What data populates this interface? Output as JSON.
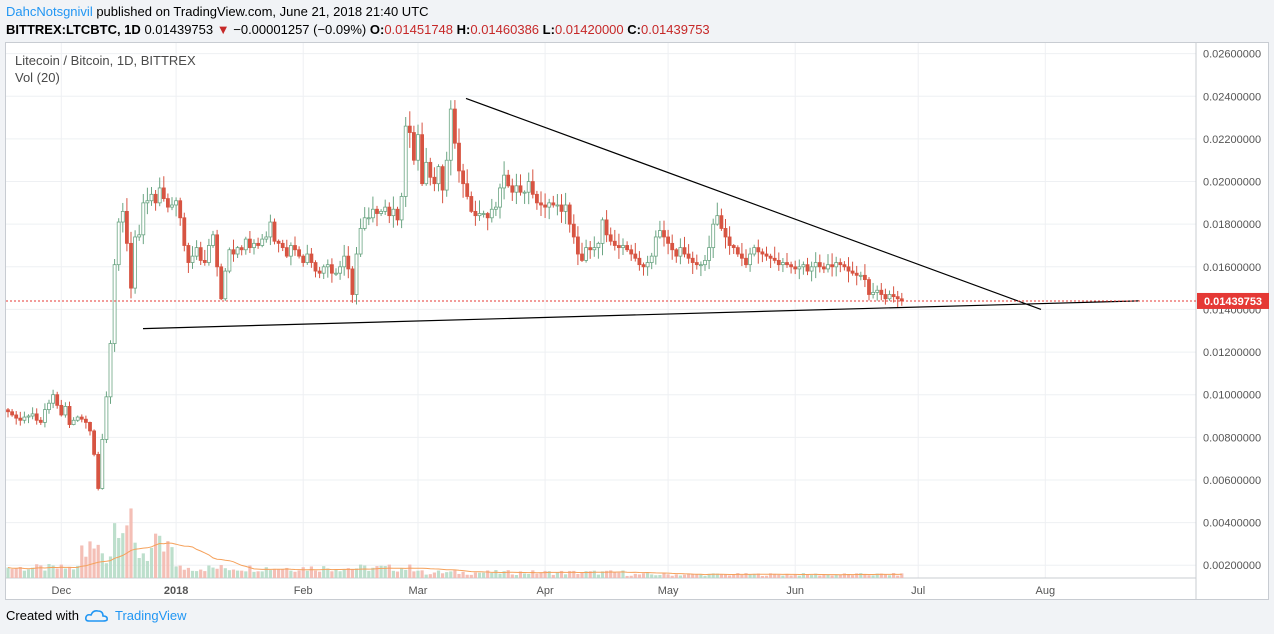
{
  "header": {
    "author": "DahcNotsgnivil",
    "published_text": "published on TradingView.com, June 21, 2018 21:40 UTC",
    "symbol": "BITTREX:LTCBTC, 1D",
    "last": "0.01439753",
    "arrow": "▼",
    "change": "−0.00001257 (−0.09%)",
    "o_label": "O:",
    "o_value": "0.01451748",
    "h_label": "H:",
    "h_value": "0.01460386",
    "l_label": "L:",
    "l_value": "0.01420000",
    "c_label": "C:",
    "c_value": "0.01439753"
  },
  "legend": {
    "title": "Litecoin / Bitcoin, 1D, BITTREX",
    "volume": "Vol (20)"
  },
  "footer": {
    "created_with": "Created with",
    "brand": "TradingView"
  },
  "colors": {
    "up": "#6ba583",
    "down": "#d75442",
    "upFill": "#ffffff",
    "last_price_tag": "#e53935",
    "vol_ma": "#f5a15b"
  },
  "chart_data": {
    "type": "candlestick",
    "y_axis_ticks": [
      "0.02600000",
      "0.02400000",
      "0.02200000",
      "0.02000000",
      "0.01800000",
      "0.01600000",
      "0.01400000",
      "0.01200000",
      "0.01000000",
      "0.00800000",
      "0.00600000",
      "0.00400000",
      "0.00200000"
    ],
    "ylim": [
      0.0014,
      0.0265
    ],
    "x_axis_labels": [
      "Dec",
      "2018",
      "Feb",
      "Mar",
      "Apr",
      "May",
      "Jun",
      "Jul",
      "Aug"
    ],
    "last_price_label": "0.01439753",
    "last_price": 0.01439753,
    "closes": [
      0.0092,
      0.00905,
      0.0089,
      0.0088,
      0.00895,
      0.009,
      0.0091,
      0.0088,
      0.0087,
      0.0093,
      0.0096,
      0.01,
      0.0095,
      0.00905,
      0.00945,
      0.0086,
      0.0088,
      0.00895,
      0.00885,
      0.0087,
      0.0083,
      0.0072,
      0.0056,
      0.0079,
      0.0099,
      0.0124,
      0.0161,
      0.0181,
      0.0186,
      0.0171,
      0.015,
      0.0174,
      0.0175,
      0.019,
      0.0191,
      0.0194,
      0.019,
      0.0197,
      0.0192,
      0.0188,
      0.0189,
      0.0191,
      0.0183,
      0.017,
      0.0162,
      0.0165,
      0.0169,
      0.0163,
      0.0162,
      0.017,
      0.0175,
      0.016,
      0.0145,
      0.0158,
      0.0168,
      0.0166,
      0.0169,
      0.0168,
      0.0173,
      0.0169,
      0.0171,
      0.017,
      0.0173,
      0.0174,
      0.0181,
      0.0172,
      0.0171,
      0.0169,
      0.0165,
      0.017,
      0.0168,
      0.0165,
      0.0162,
      0.0166,
      0.0162,
      0.0158,
      0.0157,
      0.016,
      0.0161,
      0.0157,
      0.0157,
      0.016,
      0.0165,
      0.0159,
      0.0147,
      0.0166,
      0.0178,
      0.0183,
      0.0183,
      0.0187,
      0.0185,
      0.0186,
      0.0188,
      0.0184,
      0.0187,
      0.0182,
      0.0193,
      0.0226,
      0.0223,
      0.021,
      0.0222,
      0.0199,
      0.0209,
      0.0202,
      0.0199,
      0.0207,
      0.0196,
      0.021,
      0.0234,
      0.0218,
      0.0205,
      0.0199,
      0.0193,
      0.0186,
      0.0184,
      0.0185,
      0.0185,
      0.0183,
      0.0187,
      0.0188,
      0.0197,
      0.0203,
      0.0198,
      0.0195,
      0.0198,
      0.0195,
      0.0195,
      0.02,
      0.0194,
      0.019,
      0.0189,
      0.0188,
      0.019,
      0.0189,
      0.0189,
      0.0186,
      0.0189,
      0.018,
      0.0174,
      0.0166,
      0.0163,
      0.0169,
      0.0168,
      0.0169,
      0.0171,
      0.0182,
      0.0175,
      0.0172,
      0.017,
      0.0169,
      0.017,
      0.0168,
      0.0166,
      0.0164,
      0.0161,
      0.016,
      0.0162,
      0.0165,
      0.0174,
      0.0177,
      0.0174,
      0.0171,
      0.0168,
      0.0165,
      0.0169,
      0.0166,
      0.0164,
      0.0162,
      0.0161,
      0.0161,
      0.0163,
      0.0169,
      0.018,
      0.0184,
      0.0178,
      0.0174,
      0.017,
      0.0169,
      0.0166,
      0.0164,
      0.0161,
      0.0166,
      0.0169,
      0.0167,
      0.0166,
      0.0165,
      0.0164,
      0.0163,
      0.0161,
      0.0162,
      0.0161,
      0.016,
      0.0159,
      0.016,
      0.0161,
      0.0158,
      0.016,
      0.0162,
      0.016,
      0.0159,
      0.0161,
      0.016,
      0.0162,
      0.0161,
      0.016,
      0.0158,
      0.0157,
      0.0156,
      0.0156,
      0.0154,
      0.0147,
      0.0148,
      0.0149,
      0.0147,
      0.0145,
      0.0147,
      0.0146,
      0.0145,
      0.0144
    ],
    "trendlines": [
      {
        "name": "descending-resistance",
        "x": [
          "Feb 24",
          "Jul 6"
        ],
        "y": [
          0.0239,
          0.014
        ]
      },
      {
        "name": "ascending-support",
        "x": [
          "Dec 11",
          "Jul 27"
        ],
        "y": [
          0.0131,
          0.0144
        ]
      }
    ]
  }
}
